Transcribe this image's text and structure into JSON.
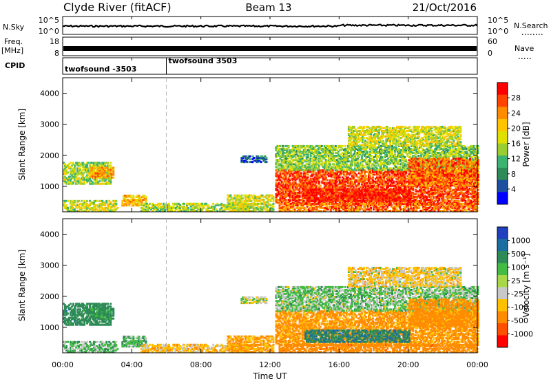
{
  "header": {
    "station": "Clyde River (fitACF)",
    "beam": "Beam 13",
    "date": "21/Oct/2016"
  },
  "strip_nsky": {
    "left_label": "N.Sky",
    "right_label": "N.Search",
    "y_ticks": [
      "10^5",
      "10^0"
    ],
    "right_ticks": [
      "10^5",
      "10^0"
    ]
  },
  "strip_freq": {
    "left_label_line1": "Freq.",
    "left_label_line2": "[MHz]",
    "right_label": "Nave",
    "y_ticks": [
      "18",
      "8"
    ],
    "right_ticks": [
      "60",
      "0"
    ]
  },
  "cpid": {
    "label": "CPID",
    "modes": [
      {
        "name": "twofsound -3503",
        "start_hour": 0
      },
      {
        "name": "twofsound 3503",
        "start_hour": 6
      }
    ]
  },
  "panels": {
    "power": {
      "ylabel": "Slant Range [km]",
      "cbar_label": "Power [dB]",
      "cbar_ticks": [
        "28",
        "24",
        "20",
        "16",
        "12",
        "8",
        "4"
      ],
      "cbar_colors": [
        "#ff0000",
        "#ff4500",
        "#ff8c00",
        "#ffc400",
        "#e0e000",
        "#9acd32",
        "#3cb371",
        "#2e8b57",
        "#1c4fa0",
        "#0000ff"
      ]
    },
    "velocity": {
      "ylabel": "Slant Range [km]",
      "cbar_label": "Velocity [m s⁻¹]",
      "cbar_ticks": [
        "1000",
        "500",
        "100",
        "25",
        "-25",
        "-100",
        "-500",
        "-1000"
      ],
      "cbar_colors": [
        "#2040c0",
        "#1a6fa0",
        "#2e8b57",
        "#44bb44",
        "#a8d848",
        "#c8c8c8",
        "#ffc000",
        "#ff8c00",
        "#ff5000",
        "#ff0000"
      ]
    }
  },
  "x_axis": {
    "label": "Time UT",
    "ticks": [
      "00:00",
      "04:00",
      "08:00",
      "12:00",
      "16:00",
      "20:00",
      "00:00"
    ]
  },
  "chart_data": {
    "type": "heatmap",
    "title": "Clyde River (fitACF)",
    "subtitle": "Beam 13",
    "date": "21/Oct/2016",
    "xlabel": "Time UT",
    "ylabel": "Slant Range [km]",
    "x_range_hours": [
      0,
      24
    ],
    "y_range_km": [
      180,
      4500
    ],
    "y_ticks_km": [
      1000,
      2000,
      3000,
      4000
    ],
    "x_tick_hours": [
      0,
      4,
      8,
      12,
      16,
      20,
      24
    ],
    "power_db_range": [
      0,
      30
    ],
    "velocity_range": [
      -1000,
      1000
    ],
    "regions": [
      {
        "t0": 0.0,
        "t1": 3.2,
        "r0": 180,
        "r1": 500,
        "power": 16,
        "velocity": 60
      },
      {
        "t0": 0.0,
        "t1": 2.8,
        "r0": 1050,
        "r1": 1750,
        "power": 14,
        "velocity": 300
      },
      {
        "t0": 1.6,
        "t1": 2.9,
        "r0": 1250,
        "r1": 1600,
        "power": 22,
        "velocity": 150
      },
      {
        "t0": 3.4,
        "t1": 4.8,
        "r0": 350,
        "r1": 700,
        "power": 20,
        "velocity": 80
      },
      {
        "t0": 4.5,
        "t1": 11.0,
        "r0": 180,
        "r1": 450,
        "power": 14,
        "velocity": -60
      },
      {
        "t0": 9.5,
        "t1": 12.2,
        "r0": 180,
        "r1": 700,
        "power": 16,
        "velocity": -120
      },
      {
        "t0": 10.3,
        "t1": 11.8,
        "r0": 1750,
        "r1": 1950,
        "power": 6,
        "velocity": 10
      },
      {
        "t0": 12.3,
        "t1": 24.0,
        "r0": 400,
        "r1": 1500,
        "power": 26,
        "velocity": -150
      },
      {
        "t0": 14.0,
        "t1": 20.0,
        "r0": 500,
        "r1": 900,
        "power": 28,
        "velocity": 400
      },
      {
        "t0": 12.3,
        "t1": 24.0,
        "r0": 1500,
        "r1": 2300,
        "power": 13,
        "velocity": 40
      },
      {
        "t0": 16.5,
        "t1": 23.0,
        "r0": 2300,
        "r1": 2900,
        "power": 16,
        "velocity": -40
      },
      {
        "t0": 20.0,
        "t1": 24.0,
        "r0": 1000,
        "r1": 1900,
        "power": 24,
        "velocity": -200
      },
      {
        "t0": 12.5,
        "t1": 24.0,
        "r0": 180,
        "r1": 420,
        "power": 24,
        "velocity": -300
      }
    ]
  }
}
